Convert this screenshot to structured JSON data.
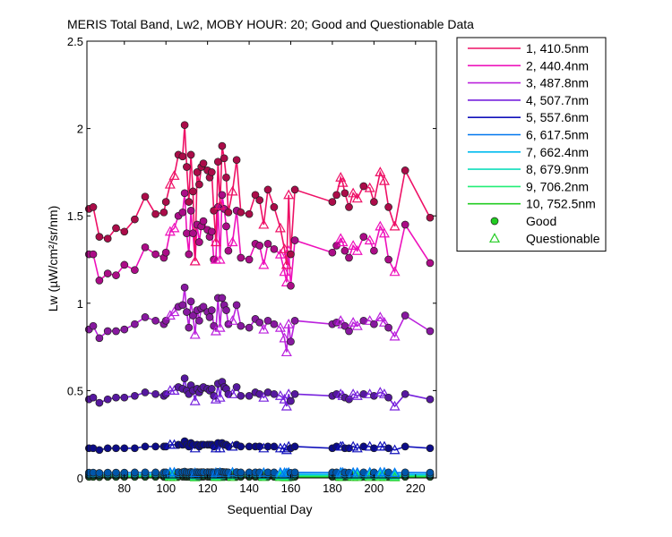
{
  "chart_data": {
    "type": "line",
    "title": "MERIS Total Band,  Lw2, MOBY HOUR: 20;  Good and Questionable Data",
    "xlabel": "Sequential Day",
    "ylabel": "Lw (µW/cm²/sr/nm)",
    "xlim": [
      62,
      230
    ],
    "ylim": [
      0,
      2.5
    ],
    "xticks": [
      80,
      100,
      120,
      140,
      160,
      180,
      200,
      220
    ],
    "yticks": [
      0,
      0.5,
      1,
      1.5,
      2,
      2.5
    ],
    "ytick_labels": [
      "0",
      "0.5",
      "1",
      "1.5",
      "2",
      "2.5"
    ],
    "grid": false,
    "legend_position": "outside-right",
    "marker_legend": [
      {
        "label": "Good",
        "marker": "circle"
      },
      {
        "label": "Questionable",
        "marker": "triangle"
      }
    ],
    "x": [
      63,
      65,
      68,
      72,
      76,
      80,
      85,
      90,
      95,
      99,
      100,
      102,
      104,
      106,
      108,
      109,
      110,
      111,
      112,
      113,
      114,
      115,
      116,
      117,
      118,
      120,
      121,
      122,
      123,
      124,
      125,
      126,
      127,
      128,
      129,
      130,
      132,
      134,
      136,
      140,
      143,
      145,
      147,
      149,
      152,
      155,
      157,
      158,
      159,
      160,
      162,
      180,
      182,
      184,
      185,
      186,
      188,
      190,
      192,
      195,
      198,
      200,
      203,
      205,
      207,
      210,
      215,
      227
    ],
    "quality": [
      "G",
      "G",
      "G",
      "G",
      "G",
      "G",
      "G",
      "G",
      "G",
      "G",
      "G",
      "Q",
      "Q",
      "G",
      "G",
      "G",
      "G",
      "G",
      "G",
      "G",
      "Q",
      "G",
      "G",
      "G",
      "G",
      "G",
      "G",
      "G",
      "G",
      "Q",
      "G",
      "Q",
      "G",
      "G",
      "G",
      "G",
      "Q",
      "G",
      "G",
      "G",
      "G",
      "G",
      "Q",
      "G",
      "G",
      "Q",
      "Q",
      "Q",
      "Q",
      "G",
      "G",
      "G",
      "G",
      "Q",
      "Q",
      "G",
      "G",
      "Q",
      "Q",
      "G",
      "Q",
      "G",
      "Q",
      "Q",
      "G",
      "Q",
      "G",
      "G"
    ],
    "series": [
      {
        "name": "1, 410.5nm",
        "color": "#ee1166",
        "values": [
          1.54,
          1.55,
          1.38,
          1.37,
          1.43,
          1.41,
          1.48,
          1.61,
          1.51,
          1.52,
          1.58,
          1.68,
          1.73,
          1.85,
          1.84,
          2.02,
          1.78,
          1.58,
          1.85,
          1.64,
          1.24,
          1.75,
          1.68,
          1.78,
          1.8,
          1.76,
          1.72,
          1.75,
          1.53,
          1.35,
          1.81,
          1.56,
          1.9,
          1.83,
          1.72,
          1.52,
          1.64,
          1.82,
          1.52,
          1.51,
          1.62,
          1.59,
          1.45,
          1.65,
          1.55,
          1.43,
          1.31,
          1.22,
          1.62,
          1.28,
          1.65,
          1.58,
          1.62,
          1.72,
          1.69,
          1.63,
          1.55,
          1.63,
          1.6,
          1.67,
          1.66,
          1.58,
          1.75,
          1.7,
          1.55,
          1.44,
          1.76,
          1.49
        ]
      },
      {
        "name": "2, 440.4nm",
        "color": "#ee11bb",
        "values": [
          1.28,
          1.28,
          1.13,
          1.17,
          1.16,
          1.22,
          1.19,
          1.32,
          1.28,
          1.26,
          1.29,
          1.41,
          1.43,
          1.5,
          1.52,
          1.63,
          1.4,
          1.28,
          1.53,
          1.4,
          1.24,
          1.45,
          1.35,
          1.44,
          1.47,
          1.42,
          1.38,
          1.41,
          1.25,
          1.25,
          1.55,
          1.25,
          1.62,
          1.54,
          1.44,
          1.3,
          1.35,
          1.53,
          1.26,
          1.25,
          1.34,
          1.33,
          1.22,
          1.34,
          1.31,
          1.28,
          1.18,
          1.12,
          1.3,
          1.1,
          1.36,
          1.29,
          1.33,
          1.37,
          1.35,
          1.3,
          1.26,
          1.33,
          1.3,
          1.38,
          1.36,
          1.3,
          1.44,
          1.4,
          1.25,
          1.18,
          1.45,
          1.23
        ]
      },
      {
        "name": "3, 487.8nm",
        "color": "#bb22dd",
        "values": [
          0.85,
          0.87,
          0.8,
          0.84,
          0.84,
          0.85,
          0.88,
          0.92,
          0.9,
          0.88,
          0.9,
          0.93,
          0.95,
          0.98,
          0.99,
          1.09,
          0.95,
          0.86,
          1.01,
          0.93,
          0.82,
          0.96,
          0.9,
          0.97,
          0.98,
          0.95,
          0.92,
          0.96,
          0.87,
          0.84,
          1.03,
          0.86,
          1.03,
          0.99,
          0.96,
          0.88,
          0.9,
          0.99,
          0.87,
          0.86,
          0.91,
          0.89,
          0.85,
          0.9,
          0.88,
          0.86,
          0.8,
          0.72,
          0.88,
          0.78,
          0.9,
          0.88,
          0.89,
          0.9,
          0.88,
          0.87,
          0.84,
          0.89,
          0.87,
          0.9,
          0.9,
          0.88,
          0.92,
          0.89,
          0.86,
          0.81,
          0.93,
          0.84
        ]
      },
      {
        "name": "4, 507.7nm",
        "color": "#7722dd",
        "values": [
          0.45,
          0.46,
          0.43,
          0.45,
          0.46,
          0.46,
          0.47,
          0.49,
          0.48,
          0.47,
          0.48,
          0.5,
          0.5,
          0.52,
          0.51,
          0.57,
          0.5,
          0.48,
          0.53,
          0.5,
          0.44,
          0.51,
          0.49,
          0.51,
          0.52,
          0.51,
          0.5,
          0.51,
          0.47,
          0.45,
          0.54,
          0.46,
          0.55,
          0.52,
          0.51,
          0.48,
          0.48,
          0.52,
          0.47,
          0.47,
          0.49,
          0.48,
          0.46,
          0.49,
          0.48,
          0.47,
          0.45,
          0.41,
          0.48,
          0.44,
          0.48,
          0.47,
          0.48,
          0.48,
          0.47,
          0.46,
          0.45,
          0.48,
          0.47,
          0.48,
          0.48,
          0.47,
          0.49,
          0.48,
          0.46,
          0.41,
          0.48,
          0.45
        ]
      },
      {
        "name": "5, 557.6nm",
        "color": "#1111bb",
        "values": [
          0.17,
          0.17,
          0.16,
          0.17,
          0.17,
          0.17,
          0.17,
          0.18,
          0.18,
          0.18,
          0.18,
          0.19,
          0.19,
          0.19,
          0.19,
          0.21,
          0.19,
          0.18,
          0.2,
          0.19,
          0.17,
          0.19,
          0.18,
          0.19,
          0.19,
          0.19,
          0.19,
          0.19,
          0.18,
          0.17,
          0.2,
          0.17,
          0.2,
          0.19,
          0.19,
          0.18,
          0.18,
          0.19,
          0.18,
          0.18,
          0.18,
          0.18,
          0.17,
          0.18,
          0.18,
          0.17,
          0.17,
          0.16,
          0.18,
          0.17,
          0.18,
          0.17,
          0.18,
          0.18,
          0.18,
          0.17,
          0.17,
          0.18,
          0.17,
          0.18,
          0.18,
          0.17,
          0.18,
          0.18,
          0.17,
          0.16,
          0.18,
          0.17
        ]
      },
      {
        "name": "6, 617.5nm",
        "color": "#0077ee",
        "values": [
          0.03,
          0.03,
          0.028,
          0.03,
          0.03,
          0.03,
          0.031,
          0.032,
          0.031,
          0.031,
          0.031,
          0.032,
          0.032,
          0.033,
          0.033,
          0.036,
          0.032,
          0.031,
          0.034,
          0.032,
          0.029,
          0.033,
          0.032,
          0.033,
          0.033,
          0.033,
          0.032,
          0.033,
          0.031,
          0.03,
          0.034,
          0.031,
          0.035,
          0.033,
          0.033,
          0.031,
          0.032,
          0.033,
          0.031,
          0.031,
          0.032,
          0.031,
          0.03,
          0.032,
          0.031,
          0.031,
          0.03,
          0.028,
          0.031,
          0.029,
          0.032,
          0.031,
          0.031,
          0.032,
          0.031,
          0.031,
          0.03,
          0.031,
          0.031,
          0.032,
          0.032,
          0.031,
          0.032,
          0.032,
          0.031,
          0.029,
          0.032,
          0.03
        ]
      },
      {
        "name": "7, 662.4nm",
        "color": "#00bbee",
        "values": [
          0.02,
          0.02,
          0.019,
          0.02,
          0.02,
          0.02,
          0.02,
          0.021,
          0.021,
          0.02,
          0.021,
          0.021,
          0.021,
          0.022,
          0.022,
          0.024,
          0.021,
          0.02,
          0.022,
          0.021,
          0.019,
          0.022,
          0.021,
          0.022,
          0.022,
          0.022,
          0.021,
          0.022,
          0.02,
          0.02,
          0.023,
          0.02,
          0.023,
          0.022,
          0.022,
          0.021,
          0.021,
          0.022,
          0.02,
          0.02,
          0.021,
          0.021,
          0.02,
          0.021,
          0.021,
          0.02,
          0.02,
          0.019,
          0.021,
          0.019,
          0.021,
          0.02,
          0.021,
          0.021,
          0.021,
          0.02,
          0.02,
          0.021,
          0.021,
          0.021,
          0.021,
          0.021,
          0.021,
          0.021,
          0.02,
          0.019,
          0.021,
          0.02
        ]
      },
      {
        "name": "8, 679.9nm",
        "color": "#11ddbb",
        "values": [
          0.018,
          0.018,
          0.017,
          0.018,
          0.018,
          0.018,
          0.018,
          0.019,
          0.019,
          0.018,
          0.019,
          0.019,
          0.019,
          0.02,
          0.02,
          0.021,
          0.019,
          0.018,
          0.02,
          0.019,
          0.017,
          0.02,
          0.019,
          0.02,
          0.02,
          0.02,
          0.019,
          0.02,
          0.018,
          0.018,
          0.021,
          0.018,
          0.021,
          0.02,
          0.02,
          0.019,
          0.019,
          0.02,
          0.018,
          0.018,
          0.019,
          0.019,
          0.018,
          0.019,
          0.019,
          0.018,
          0.018,
          0.017,
          0.019,
          0.017,
          0.019,
          0.018,
          0.019,
          0.019,
          0.019,
          0.018,
          0.018,
          0.019,
          0.019,
          0.019,
          0.019,
          0.019,
          0.019,
          0.019,
          0.018,
          0.017,
          0.019,
          0.018
        ]
      },
      {
        "name": "9, 706.2nm",
        "color": "#22ee77",
        "values": [
          0.012,
          0.012,
          0.011,
          0.012,
          0.012,
          0.012,
          0.012,
          0.013,
          0.013,
          0.012,
          0.013,
          0.013,
          0.013,
          0.013,
          0.013,
          0.014,
          0.013,
          0.012,
          0.013,
          0.013,
          0.011,
          0.013,
          0.013,
          0.013,
          0.013,
          0.013,
          0.013,
          0.013,
          0.012,
          0.012,
          0.014,
          0.012,
          0.014,
          0.013,
          0.013,
          0.013,
          0.013,
          0.013,
          0.012,
          0.012,
          0.013,
          0.013,
          0.012,
          0.013,
          0.013,
          0.012,
          0.012,
          0.011,
          0.013,
          0.011,
          0.013,
          0.012,
          0.013,
          0.013,
          0.013,
          0.012,
          0.012,
          0.013,
          0.013,
          0.013,
          0.013,
          0.013,
          0.013,
          0.013,
          0.012,
          0.011,
          0.013,
          0.012
        ]
      },
      {
        "name": "10, 752.5nm",
        "color": "#22cc22",
        "values": [
          0.006,
          0.006,
          0.005,
          0.006,
          0.006,
          0.006,
          0.006,
          0.006,
          0.006,
          0.006,
          0.006,
          0.006,
          0.006,
          0.007,
          0.007,
          0.007,
          0.006,
          0.006,
          0.007,
          0.006,
          0.005,
          0.007,
          0.006,
          0.007,
          0.007,
          0.007,
          0.006,
          0.007,
          0.006,
          0.006,
          0.007,
          0.006,
          0.007,
          0.007,
          0.007,
          0.006,
          0.006,
          0.007,
          0.006,
          0.006,
          0.006,
          0.006,
          0.006,
          0.006,
          0.006,
          0.006,
          0.006,
          0.005,
          0.006,
          0.005,
          0.006,
          0.006,
          0.006,
          0.006,
          0.006,
          0.006,
          0.006,
          0.006,
          0.006,
          0.006,
          0.006,
          0.006,
          0.006,
          0.006,
          0.006,
          0.005,
          0.006,
          0.006
        ]
      }
    ]
  }
}
